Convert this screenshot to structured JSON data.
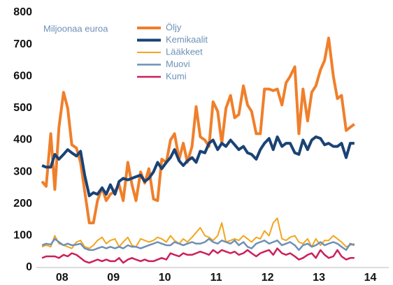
{
  "chart_data": {
    "type": "line",
    "ylabel": "Miljoonaa euroa",
    "x": [
      2008.11,
      2008.19,
      2008.28,
      2008.36,
      2008.44,
      2008.53,
      2008.61,
      2008.69,
      2008.78,
      2008.86,
      2008.94,
      2009.03,
      2009.11,
      2009.19,
      2009.28,
      2009.36,
      2009.44,
      2009.53,
      2009.61,
      2009.69,
      2009.78,
      2009.86,
      2009.94,
      2010.03,
      2010.11,
      2010.19,
      2010.28,
      2010.36,
      2010.44,
      2010.53,
      2010.61,
      2010.69,
      2010.78,
      2010.86,
      2010.94,
      2011.03,
      2011.11,
      2011.19,
      2011.28,
      2011.36,
      2011.44,
      2011.53,
      2011.61,
      2011.69,
      2011.78,
      2011.86,
      2011.94,
      2012.03,
      2012.11,
      2012.19,
      2012.28,
      2012.36,
      2012.44,
      2012.53,
      2012.61,
      2012.69,
      2012.78,
      2012.86,
      2012.94,
      2013.03,
      2013.11,
      2013.19,
      2013.28,
      2013.36,
      2013.44,
      2013.53,
      2013.61,
      2013.69,
      2013.78,
      2013.86,
      2013.94,
      2014.03,
      2014.11,
      2014.19
    ],
    "series": [
      {
        "name": "Öljy",
        "color": "#f07f2a",
        "values": [
          270,
          255,
          420,
          245,
          440,
          550,
          500,
          385,
          375,
          330,
          240,
          140,
          140,
          210,
          250,
          210,
          230,
          240,
          260,
          210,
          330,
          260,
          210,
          300,
          265,
          310,
          215,
          210,
          340,
          330,
          400,
          420,
          340,
          390,
          330,
          380,
          505,
          410,
          400,
          380,
          520,
          490,
          390,
          500,
          540,
          470,
          480,
          570,
          510,
          490,
          420,
          420,
          560,
          560,
          555,
          560,
          510,
          580,
          600,
          630,
          420,
          560,
          460,
          550,
          570,
          620,
          650,
          720,
          600,
          530,
          540,
          430,
          440,
          450
        ]
      },
      {
        "name": "Kemikaalit",
        "color": "#1a4375",
        "values": [
          320,
          315,
          315,
          355,
          340,
          355,
          370,
          360,
          350,
          365,
          290,
          225,
          235,
          230,
          250,
          230,
          260,
          230,
          270,
          280,
          275,
          280,
          285,
          290,
          270,
          280,
          300,
          330,
          310,
          330,
          345,
          370,
          335,
          320,
          335,
          345,
          330,
          365,
          360,
          390,
          400,
          370,
          390,
          380,
          400,
          385,
          370,
          380,
          360,
          355,
          340,
          370,
          390,
          405,
          370,
          410,
          380,
          390,
          390,
          360,
          355,
          400,
          370,
          400,
          410,
          405,
          385,
          390,
          380,
          380,
          390,
          345,
          390,
          390
        ]
      },
      {
        "name": "Lääkkeet",
        "color": "#f3a51e",
        "values": [
          65,
          70,
          65,
          100,
          75,
          70,
          65,
          60,
          80,
          85,
          65,
          60,
          70,
          85,
          95,
          75,
          85,
          90,
          65,
          80,
          95,
          70,
          65,
          90,
          85,
          80,
          85,
          95,
          90,
          80,
          100,
          85,
          75,
          90,
          80,
          95,
          110,
          125,
          100,
          95,
          85,
          100,
          140,
          80,
          85,
          90,
          85,
          100,
          90,
          80,
          95,
          90,
          115,
          100,
          140,
          155,
          90,
          85,
          95,
          100,
          80,
          75,
          90,
          65,
          90,
          70,
          85,
          85,
          100,
          90,
          80,
          65,
          70,
          75
        ]
      },
      {
        "name": "Muovi",
        "color": "#6e90b8",
        "values": [
          70,
          75,
          72,
          90,
          80,
          70,
          75,
          70,
          72,
          75,
          60,
          55,
          55,
          60,
          65,
          60,
          65,
          60,
          65,
          60,
          70,
          65,
          65,
          60,
          65,
          70,
          75,
          80,
          75,
          70,
          70,
          80,
          75,
          70,
          75,
          80,
          75,
          75,
          80,
          90,
          80,
          75,
          85,
          80,
          75,
          85,
          70,
          80,
          65,
          60,
          75,
          80,
          85,
          75,
          80,
          85,
          70,
          75,
          80,
          70,
          55,
          70,
          75,
          65,
          70,
          80,
          70,
          75,
          80,
          75,
          65,
          55,
          75,
          70
        ]
      },
      {
        "name": "Kumi",
        "color": "#cc1f5b",
        "values": [
          30,
          35,
          35,
          35,
          30,
          40,
          35,
          45,
          40,
          30,
          20,
          15,
          20,
          25,
          20,
          25,
          20,
          20,
          30,
          15,
          25,
          30,
          25,
          20,
          25,
          20,
          20,
          25,
          30,
          25,
          45,
          40,
          35,
          45,
          40,
          40,
          45,
          50,
          45,
          40,
          55,
          45,
          55,
          50,
          45,
          50,
          40,
          45,
          55,
          45,
          35,
          45,
          50,
          55,
          40,
          60,
          45,
          40,
          45,
          35,
          25,
          30,
          40,
          45,
          30,
          55,
          40,
          30,
          35,
          55,
          35,
          25,
          30,
          30
        ]
      }
    ],
    "xlim": [
      2008,
      2014.86
    ],
    "xticks": [
      {
        "value": 2008.5,
        "label": "08"
      },
      {
        "value": 2009.5,
        "label": "09"
      },
      {
        "value": 2010.5,
        "label": "10"
      },
      {
        "value": 2011.5,
        "label": "11"
      },
      {
        "value": 2012.5,
        "label": "12"
      },
      {
        "value": 2013.5,
        "label": "13"
      },
      {
        "value": 2014.5,
        "label": "14"
      }
    ],
    "ylim": [
      0,
      800
    ],
    "yticks": [
      0,
      100,
      200,
      300,
      400,
      500,
      600,
      700,
      800
    ],
    "grid": false
  }
}
